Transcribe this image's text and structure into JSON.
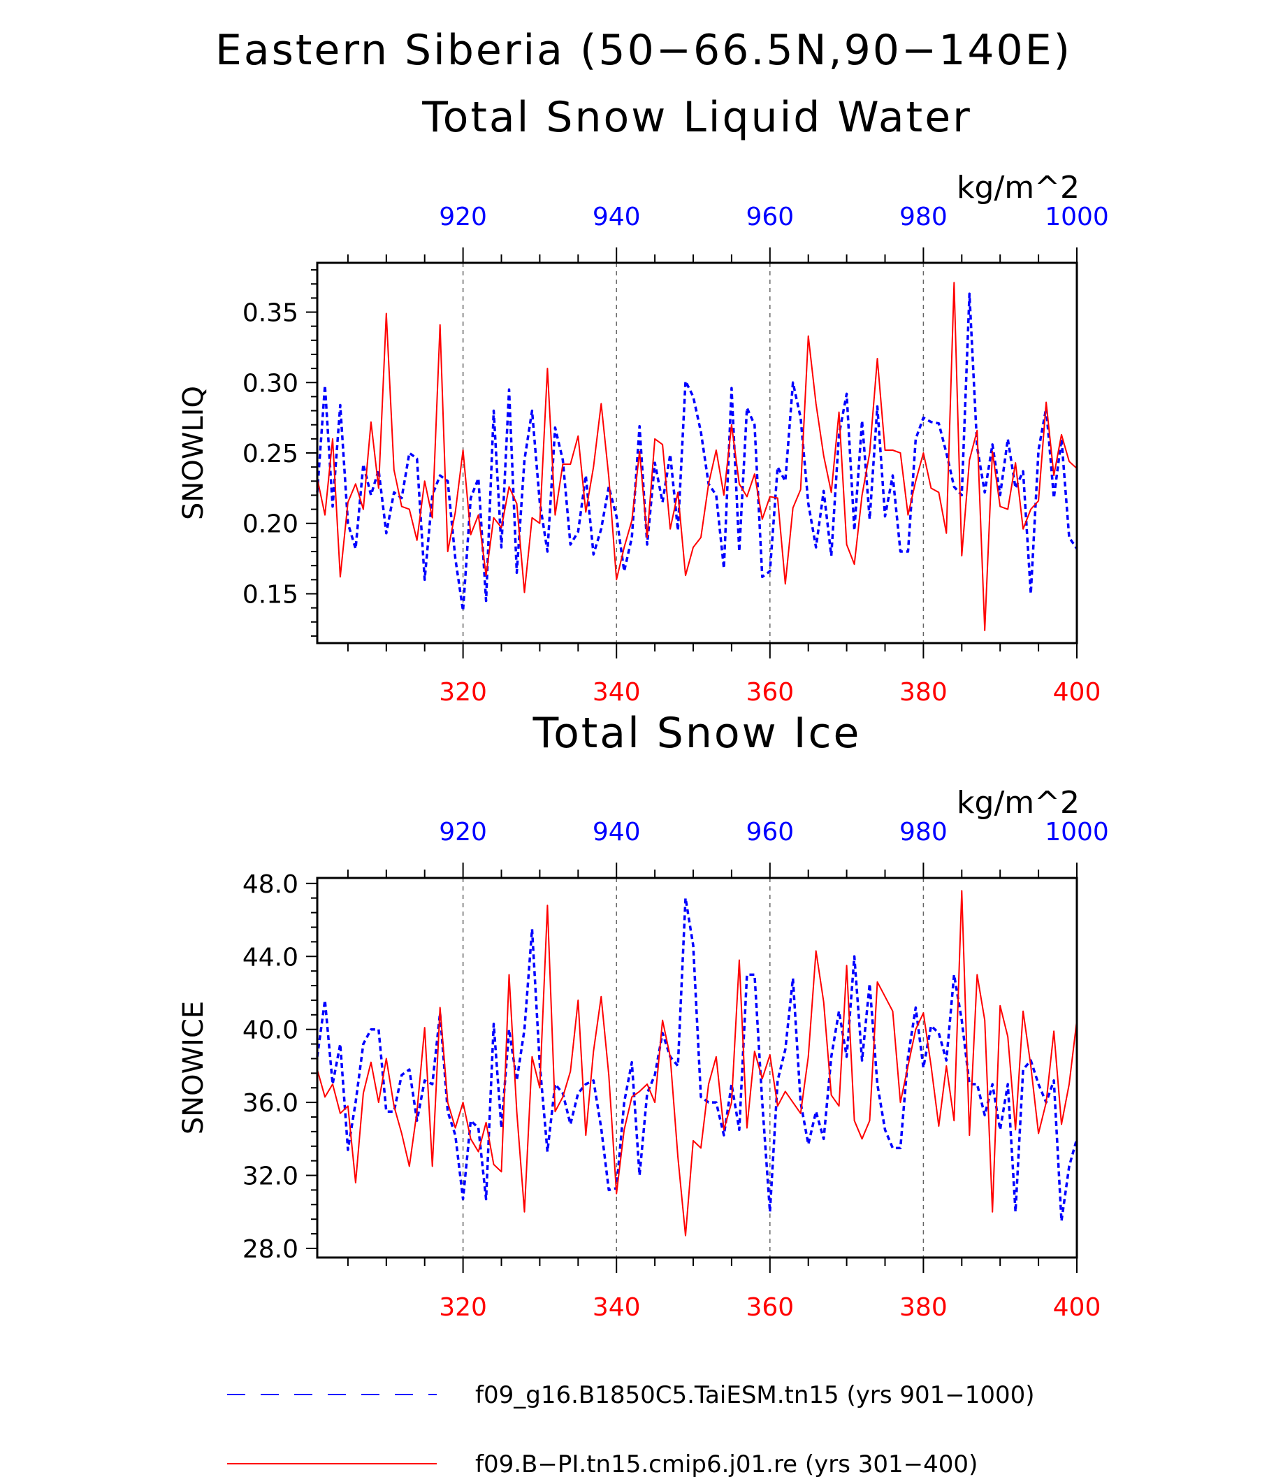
{
  "title": "Eastern Siberia (50−66.5N,90−140E)",
  "colors": {
    "model_a": "#0000ff",
    "model_b": "#ff0000",
    "grid": "#666666",
    "axis": "#000000"
  },
  "legend": [
    {
      "label": "f09_g16.B1850C5.TaiESM.tn15 (yrs 901−1000)",
      "style": "dashed",
      "color": "#0000ff"
    },
    {
      "label": "f09.B−PI.tn15.cmip6.j01.re (yrs 301−400)",
      "style": "solid",
      "color": "#ff0000"
    }
  ],
  "chart_data": [
    {
      "type": "line",
      "title": "Total Snow Liquid Water",
      "units": "kg/m^2",
      "ylabel": "SNOWLIQ",
      "ylim": [
        0.115,
        0.385
      ],
      "yticks": [
        "0.15",
        "0.20",
        "0.25",
        "0.30",
        "0.35"
      ],
      "ytick_values": [
        0.15,
        0.2,
        0.25,
        0.3,
        0.35
      ],
      "x_bottom": {
        "range": [
          301,
          400
        ],
        "ticks": [
          "320",
          "340",
          "360",
          "380",
          "400"
        ],
        "tick_values": [
          320,
          340,
          360,
          380,
          400
        ],
        "color": "#ff0000"
      },
      "x_top": {
        "range": [
          901,
          1000
        ],
        "ticks": [
          "920",
          "940",
          "960",
          "980",
          "1000"
        ],
        "tick_values": [
          920,
          940,
          960,
          980,
          1000
        ],
        "color": "#0000ff"
      },
      "grid": "vertical dashed at labeled ticks",
      "series": [
        {
          "label": "f09_g16.B1850C5.TaiESM.tn15 (yrs 901−1000)",
          "color": "#0000ff",
          "style": "dashed",
          "axis": "top",
          "x_start": 901,
          "values": [
            0.222,
            0.298,
            0.212,
            0.284,
            0.2,
            0.182,
            0.242,
            0.22,
            0.238,
            0.193,
            0.222,
            0.218,
            0.25,
            0.246,
            0.16,
            0.22,
            0.234,
            0.23,
            0.175,
            0.138,
            0.218,
            0.232,
            0.145,
            0.28,
            0.183,
            0.295,
            0.165,
            0.245,
            0.28,
            0.215,
            0.18,
            0.268,
            0.245,
            0.185,
            0.194,
            0.234,
            0.178,
            0.196,
            0.226,
            0.205,
            0.166,
            0.19,
            0.269,
            0.185,
            0.243,
            0.215,
            0.249,
            0.195,
            0.301,
            0.29,
            0.265,
            0.228,
            0.22,
            0.168,
            0.296,
            0.18,
            0.282,
            0.27,
            0.162,
            0.166,
            0.24,
            0.23,
            0.3,
            0.275,
            0.214,
            0.183,
            0.223,
            0.177,
            0.263,
            0.292,
            0.195,
            0.273,
            0.203,
            0.283,
            0.205,
            0.234,
            0.18,
            0.18,
            0.26,
            0.275,
            0.272,
            0.271,
            0.25,
            0.226,
            0.22,
            0.363,
            0.254,
            0.222,
            0.256,
            0.22,
            0.26,
            0.225,
            0.237,
            0.15,
            0.252,
            0.282,
            0.218,
            0.26,
            0.19,
            0.182
          ]
        },
        {
          "label": "f09.B−PI.tn15.cmip6.j01.re (yrs 301−400)",
          "color": "#ff0000",
          "style": "solid",
          "axis": "bottom",
          "x_start": 301,
          "values": [
            0.232,
            0.206,
            0.26,
            0.162,
            0.215,
            0.228,
            0.21,
            0.272,
            0.225,
            0.349,
            0.238,
            0.212,
            0.21,
            0.188,
            0.23,
            0.204,
            0.341,
            0.18,
            0.208,
            0.252,
            0.192,
            0.206,
            0.163,
            0.204,
            0.197,
            0.226,
            0.214,
            0.151,
            0.204,
            0.2,
            0.31,
            0.206,
            0.242,
            0.242,
            0.262,
            0.208,
            0.24,
            0.285,
            0.233,
            0.16,
            0.183,
            0.202,
            0.251,
            0.19,
            0.26,
            0.256,
            0.196,
            0.222,
            0.163,
            0.183,
            0.19,
            0.228,
            0.252,
            0.22,
            0.27,
            0.228,
            0.219,
            0.235,
            0.203,
            0.219,
            0.218,
            0.157,
            0.211,
            0.224,
            0.333,
            0.285,
            0.248,
            0.222,
            0.279,
            0.185,
            0.171,
            0.22,
            0.25,
            0.317,
            0.252,
            0.252,
            0.25,
            0.206,
            0.23,
            0.25,
            0.225,
            0.222,
            0.193,
            0.371,
            0.177,
            0.245,
            0.266,
            0.124,
            0.251,
            0.212,
            0.21,
            0.243,
            0.196,
            0.21,
            0.216,
            0.286,
            0.234,
            0.263,
            0.244,
            0.239
          ]
        }
      ]
    },
    {
      "type": "line",
      "title": "Total Snow Ice",
      "units": "kg/m^2",
      "ylabel": "SNOWICE",
      "ylim": [
        27.5,
        48.3
      ],
      "yticks": [
        "28.0",
        "32.0",
        "36.0",
        "40.0",
        "44.0",
        "48.0"
      ],
      "ytick_values": [
        28,
        32,
        36,
        40,
        44,
        48
      ],
      "x_bottom": {
        "range": [
          301,
          400
        ],
        "ticks": [
          "320",
          "340",
          "360",
          "380",
          "400"
        ],
        "tick_values": [
          320,
          340,
          360,
          380,
          400
        ],
        "color": "#ff0000"
      },
      "x_top": {
        "range": [
          901,
          1000
        ],
        "ticks": [
          "920",
          "940",
          "960",
          "980",
          "1000"
        ],
        "tick_values": [
          920,
          940,
          960,
          980,
          1000
        ],
        "color": "#0000ff"
      },
      "grid": "vertical dashed at labeled ticks",
      "series": [
        {
          "label": "f09_g16.B1850C5.TaiESM.tn15 (yrs 901−1000)",
          "color": "#0000ff",
          "style": "dashed",
          "axis": "top",
          "x_start": 901,
          "values": [
            38.5,
            41.6,
            37.0,
            39.2,
            33.4,
            36.0,
            39.2,
            40.0,
            40.0,
            35.5,
            35.5,
            37.5,
            37.8,
            35.0,
            37.2,
            37.0,
            40.9,
            35.5,
            34.2,
            30.7,
            35.0,
            34.6,
            30.7,
            40.3,
            34.6,
            40.0,
            37.2,
            40.0,
            45.5,
            38.1,
            33.3,
            37.0,
            36.5,
            34.8,
            36.5,
            37.0,
            37.2,
            34.6,
            31.2,
            31.3,
            36.0,
            38.2,
            32.0,
            36.5,
            37.5,
            39.8,
            38.5,
            38.0,
            47.2,
            44.6,
            36.3,
            36.0,
            36.0,
            34.2,
            37.0,
            34.5,
            43.0,
            43.0,
            36.0,
            30.0,
            37.2,
            38.9,
            42.8,
            36.0,
            33.7,
            35.5,
            34.0,
            38.5,
            41.0,
            38.5,
            44.0,
            38.3,
            42.5,
            37.0,
            34.5,
            33.5,
            33.5,
            38.5,
            41.2,
            37.9,
            40.2,
            39.8,
            38.3,
            43.0,
            40.5,
            37.0,
            37.0,
            35.3,
            37.0,
            34.5,
            37.0,
            30.0,
            37.8,
            38.3,
            37.0,
            36.0,
            37.2,
            29.5,
            32.5,
            34.0
          ]
        },
        {
          "label": "f09.B−PI.tn15.cmip6.j01.re (yrs 301−400)",
          "color": "#ff0000",
          "style": "solid",
          "axis": "bottom",
          "x_start": 301,
          "values": [
            37.8,
            36.3,
            37.0,
            35.4,
            35.8,
            31.6,
            36.5,
            38.2,
            36.0,
            38.4,
            35.8,
            34.3,
            32.5,
            35.5,
            40.1,
            32.5,
            41.2,
            36.0,
            34.6,
            36.0,
            34.0,
            33.3,
            34.9,
            32.6,
            32.2,
            43.0,
            35.5,
            30.0,
            38.5,
            36.8,
            46.8,
            35.5,
            36.3,
            37.7,
            41.6,
            34.2,
            38.8,
            41.8,
            37.5,
            31.0,
            34.5,
            36.3,
            36.6,
            37.0,
            36.0,
            40.5,
            38.5,
            33.0,
            28.7,
            33.9,
            33.5,
            37.0,
            38.5,
            34.5,
            36.0,
            43.8,
            34.6,
            38.8,
            37.3,
            38.6,
            35.8,
            36.6,
            36.0,
            35.4,
            38.5,
            44.3,
            41.5,
            36.4,
            35.8,
            43.5,
            35.0,
            34.0,
            35.0,
            42.6,
            41.8,
            41.0,
            36.0,
            38.0,
            40.0,
            40.9,
            38.0,
            34.7,
            38.0,
            35.0,
            47.6,
            34.2,
            43.0,
            40.5,
            30.0,
            41.3,
            39.6,
            34.5,
            41.0,
            38.0,
            34.3,
            36.0,
            39.9,
            34.8,
            37.0,
            40.5
          ]
        }
      ]
    }
  ]
}
